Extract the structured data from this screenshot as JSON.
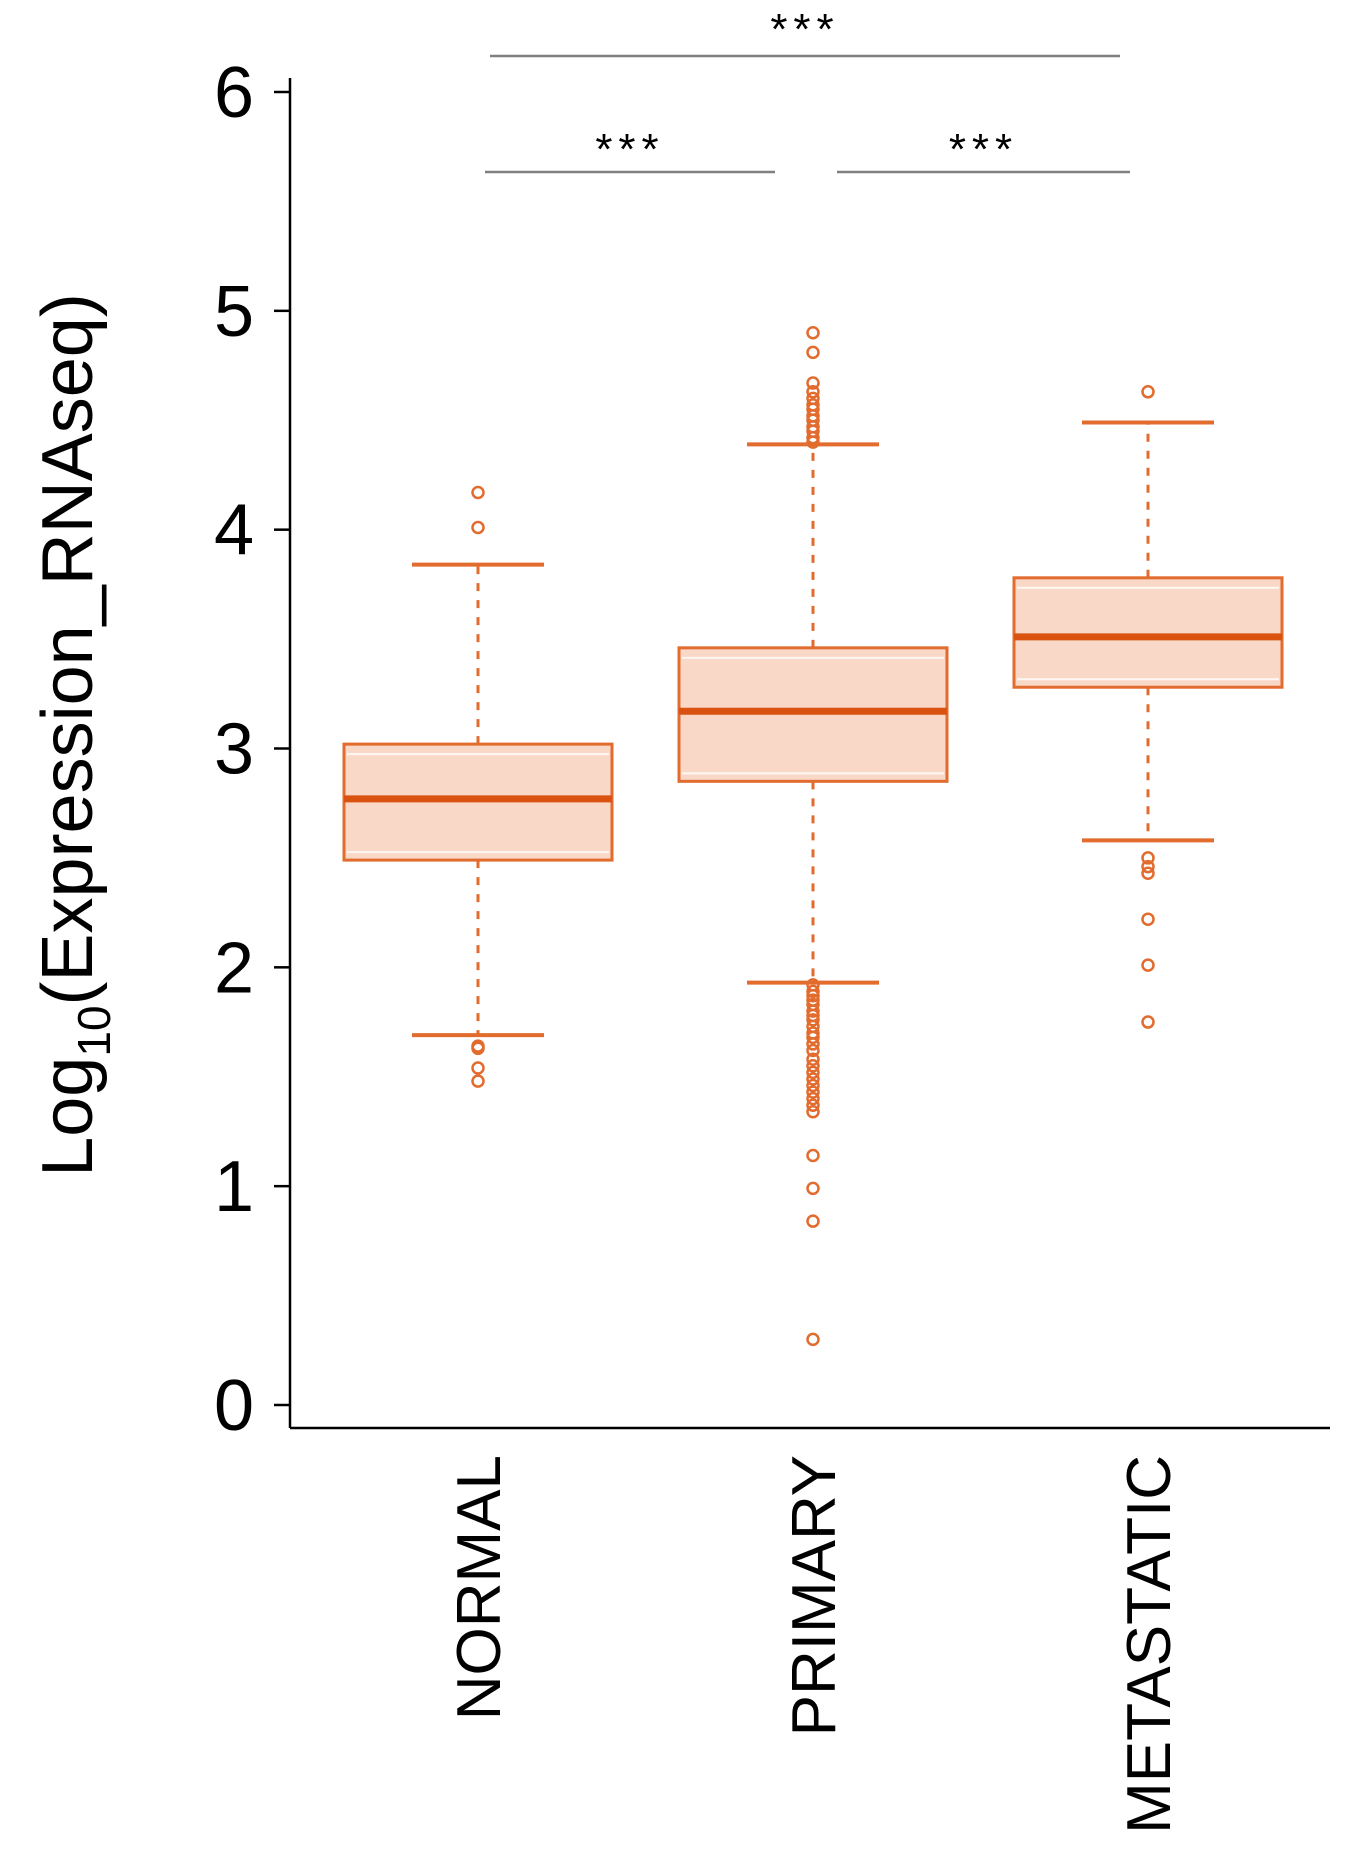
{
  "chart_data": {
    "type": "box",
    "ylabel": {
      "prefix": "Log",
      "subscript": "10",
      "suffix": "(Expression_RNAseq)"
    },
    "xlabel": "",
    "ylim": [
      0,
      6
    ],
    "yticks": [
      "0",
      "1",
      "2",
      "3",
      "4",
      "5",
      "6"
    ],
    "categories": [
      "NORMAL",
      "PRIMARY",
      "METASTATIC"
    ],
    "boxes": [
      {
        "category": "NORMAL",
        "whisker_low": 1.69,
        "q1": 2.49,
        "median": 2.77,
        "q3": 3.02,
        "whisker_high": 3.84,
        "outliers": [
          4.17,
          4.01,
          1.64,
          1.63,
          1.54,
          1.48
        ]
      },
      {
        "category": "PRIMARY",
        "whisker_low": 1.93,
        "q1": 2.85,
        "median": 3.17,
        "q3": 3.46,
        "whisker_high": 4.39,
        "outliers": [
          4.9,
          4.81,
          4.67,
          4.63,
          4.6,
          4.57,
          4.55,
          4.52,
          4.5,
          4.47,
          4.45,
          4.42,
          4.4,
          1.92,
          1.89,
          1.87,
          1.85,
          1.83,
          1.8,
          1.78,
          1.76,
          1.73,
          1.7,
          1.68,
          1.65,
          1.62,
          1.58,
          1.55,
          1.52,
          1.49,
          1.46,
          1.43,
          1.4,
          1.37,
          1.34,
          1.14,
          0.99,
          0.84,
          0.3
        ]
      },
      {
        "category": "METASTATIC",
        "whisker_low": 2.58,
        "q1": 3.28,
        "median": 3.51,
        "q3": 3.78,
        "whisker_high": 4.49,
        "outliers": [
          4.63,
          2.5,
          2.46,
          2.43,
          2.22,
          2.01,
          1.75
        ]
      }
    ],
    "significance": [
      {
        "from": "NORMAL",
        "to": "METASTATIC",
        "label": "***"
      },
      {
        "from": "NORMAL",
        "to": "PRIMARY",
        "label": "***"
      },
      {
        "from": "PRIMARY",
        "to": "METASTATIC",
        "label": "***"
      }
    ],
    "colors": {
      "box_fill": "#f9d8c8",
      "box_stroke": "#e26b2e",
      "median": "#d9520f",
      "whisker": "#e26b2e",
      "outlier": "#e26b2e",
      "axis": "#000000",
      "bracket": "#808080"
    }
  }
}
